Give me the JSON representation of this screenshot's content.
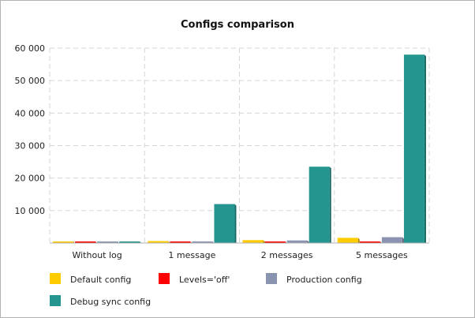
{
  "chart_data": {
    "type": "bar",
    "title": "Configs comparison",
    "categories": [
      "Without log",
      "1 message",
      "2 messages",
      "5 messages"
    ],
    "series": [
      {
        "name": "Default config",
        "color": "#ffcc00",
        "values": [
          200,
          600,
          900,
          1600
        ]
      },
      {
        "name": "Levels='off'",
        "color": "#ff0000",
        "values": [
          100,
          150,
          200,
          250
        ]
      },
      {
        "name": "Production config",
        "color": "#8a93b0",
        "values": [
          150,
          500,
          800,
          1800
        ]
      },
      {
        "name": "Debug sync config",
        "color": "#24958f",
        "values": [
          250,
          12000,
          23500,
          58000
        ]
      }
    ],
    "yticks": [
      10000,
      20000,
      30000,
      40000,
      50000,
      60000
    ],
    "ytick_labels": [
      "10 000",
      "20 000",
      "30 000",
      "40 000",
      "50 000",
      "60 000"
    ],
    "ylim": [
      0,
      60000
    ],
    "grid": true,
    "legend_position": "bottom"
  }
}
